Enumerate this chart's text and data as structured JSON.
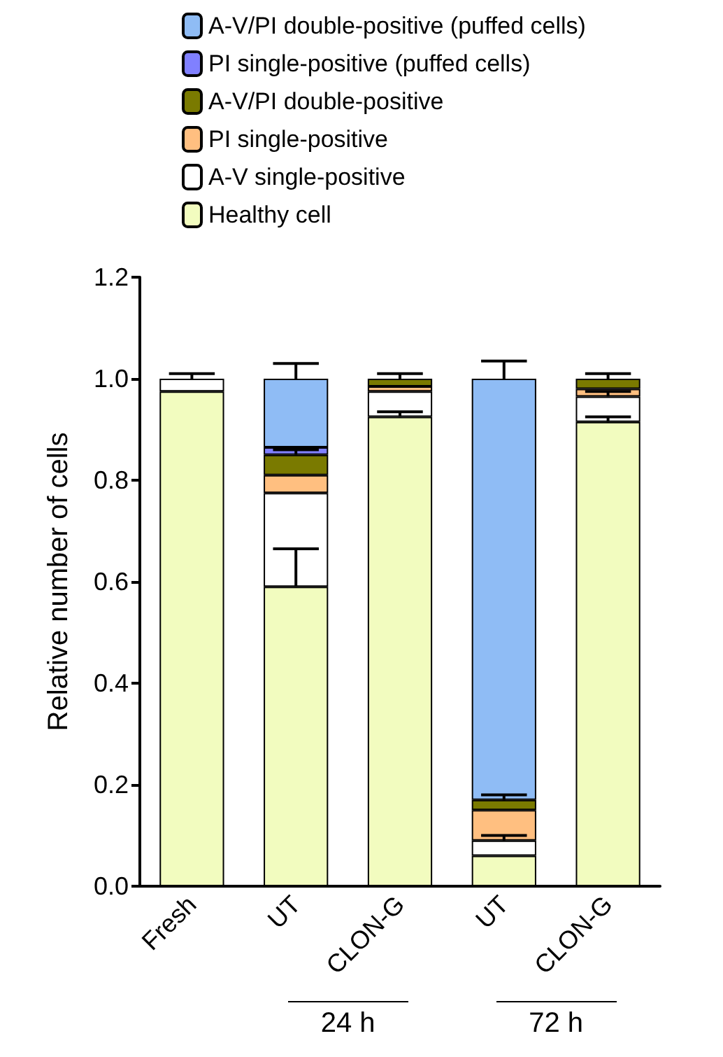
{
  "chart_data": {
    "type": "bar",
    "stacked": true,
    "ylabel": "Relative number of cells",
    "categories": [
      "Fresh",
      "UT",
      "CLON-G",
      "UT",
      "CLON-G"
    ],
    "series": [
      {
        "name": "Healthy cell",
        "color": "#f2fcbf",
        "values": [
          0.975,
          0.59,
          0.925,
          0.06,
          0.915
        ],
        "errors": [
          null,
          0.075,
          0.01,
          null,
          0.01
        ]
      },
      {
        "name": "A-V single-positive",
        "color": "#ffffff",
        "values": [
          0.025,
          0.185,
          0.05,
          0.03,
          0.05
        ],
        "errors": [
          0.01,
          null,
          null,
          0.01,
          0.01
        ]
      },
      {
        "name": "PI single-positive",
        "color": "#ffbf80",
        "values": [
          null,
          0.035,
          0.01,
          0.06,
          0.015
        ],
        "errors": [
          null,
          null,
          null,
          null,
          null
        ]
      },
      {
        "name": "A-V/PI double-positive",
        "color": "#7a7a00",
        "values": [
          null,
          0.04,
          0.015,
          0.02,
          0.02
        ],
        "errors": [
          null,
          0.01,
          0.01,
          0.01,
          0.01
        ]
      },
      {
        "name": "PI single-positive (puffed cells)",
        "color": "#8080ff",
        "values": [
          null,
          0.015,
          null,
          null,
          null
        ],
        "errors": [
          null,
          null,
          null,
          null,
          null
        ]
      },
      {
        "name": "A-V/PI double-positive (puffed cells)",
        "color": "#8fbcf5",
        "values": [
          null,
          0.135,
          null,
          0.83,
          null
        ],
        "errors": [
          null,
          0.03,
          null,
          0.035,
          null
        ]
      }
    ],
    "ylim": [
      0,
      1.2
    ],
    "yticks": [
      {
        "value": 0,
        "label": "0.0"
      },
      {
        "value": 0.2,
        "label": "0.2"
      },
      {
        "value": 0.4,
        "label": "0.4"
      },
      {
        "value": 0.6,
        "label": "0.6"
      },
      {
        "value": 0.8,
        "label": "0.8"
      },
      {
        "value": 1,
        "label": "1.0"
      },
      {
        "value": 1.2,
        "label": "1.2"
      }
    ],
    "legend": "top",
    "grid": false,
    "annotations": [
      "24 h",
      "72 h"
    ]
  }
}
